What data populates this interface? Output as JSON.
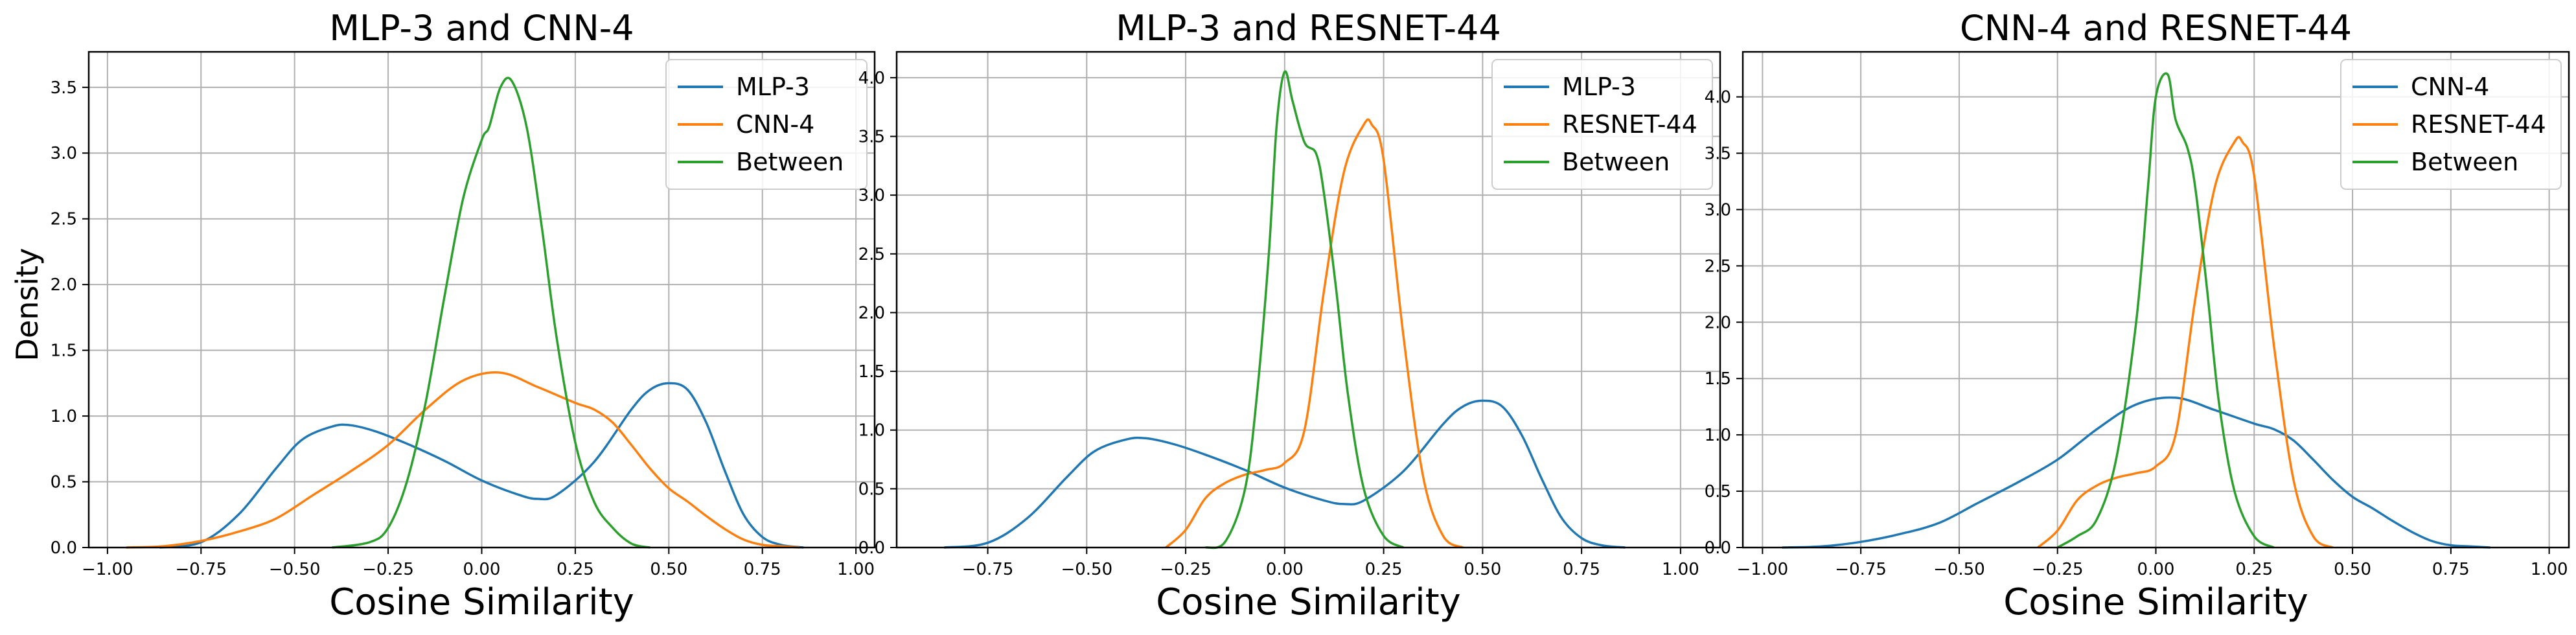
{
  "figure": {
    "ylabel": "Density"
  },
  "chart_data": [
    {
      "type": "line",
      "title": "MLP-3 and CNN-4",
      "xlabel": "Cosine Similarity",
      "ylabel": "Density",
      "xlim": [
        -1.05,
        1.05
      ],
      "ylim": [
        0,
        3.77
      ],
      "xticks": [
        -1.0,
        -0.75,
        -0.5,
        -0.25,
        0.0,
        0.25,
        0.5,
        0.75,
        1.0
      ],
      "xtick_labels": [
        "−1.00",
        "−0.75",
        "−0.50",
        "−0.25",
        "0.00",
        "0.25",
        "0.50",
        "0.75",
        "1.00"
      ],
      "yticks": [
        0,
        0.5,
        1.0,
        1.5,
        2.0,
        2.5,
        3.0,
        3.5
      ],
      "ytick_labels": [
        "0.0",
        "0.5",
        "1.0",
        "1.5",
        "2.0",
        "2.5",
        "3.0",
        "3.5"
      ],
      "grid": true,
      "legend_position": "top-right",
      "series": [
        {
          "name": "MLP-3",
          "color": "#1f77b4",
          "x": [
            -0.86,
            -0.75,
            -0.65,
            -0.55,
            -0.48,
            -0.4,
            -0.35,
            -0.28,
            -0.2,
            -0.1,
            0.0,
            0.1,
            0.15,
            0.2,
            0.3,
            0.4,
            0.45,
            0.5,
            0.55,
            0.6,
            0.65,
            0.7,
            0.75,
            0.8,
            0.86
          ],
          "y": [
            0.0,
            0.04,
            0.25,
            0.6,
            0.82,
            0.92,
            0.93,
            0.88,
            0.79,
            0.66,
            0.51,
            0.4,
            0.37,
            0.4,
            0.65,
            1.05,
            1.2,
            1.25,
            1.2,
            0.95,
            0.58,
            0.25,
            0.08,
            0.02,
            0.0
          ]
        },
        {
          "name": "CNN-4",
          "color": "#ff7f0e",
          "x": [
            -0.95,
            -0.85,
            -0.75,
            -0.65,
            -0.55,
            -0.45,
            -0.35,
            -0.25,
            -0.15,
            -0.05,
            0.05,
            0.15,
            0.25,
            0.3,
            0.35,
            0.4,
            0.45,
            0.5,
            0.55,
            0.6,
            0.65,
            0.7,
            0.75,
            0.8,
            0.85
          ],
          "y": [
            0.0,
            0.01,
            0.05,
            0.12,
            0.22,
            0.4,
            0.58,
            0.78,
            1.05,
            1.27,
            1.33,
            1.22,
            1.1,
            1.05,
            0.95,
            0.78,
            0.6,
            0.45,
            0.35,
            0.24,
            0.14,
            0.06,
            0.02,
            0.01,
            0.0
          ]
        },
        {
          "name": "Between",
          "color": "#2ca02c",
          "x": [
            -0.4,
            -0.3,
            -0.25,
            -0.2,
            -0.15,
            -0.1,
            -0.05,
            0.0,
            0.02,
            0.05,
            0.08,
            0.12,
            0.16,
            0.2,
            0.25,
            0.3,
            0.35,
            0.4,
            0.45
          ],
          "y": [
            0.0,
            0.04,
            0.15,
            0.5,
            1.1,
            1.9,
            2.65,
            3.1,
            3.2,
            3.5,
            3.55,
            3.2,
            2.45,
            1.6,
            0.8,
            0.35,
            0.15,
            0.03,
            0.0
          ]
        }
      ]
    },
    {
      "type": "line",
      "title": "MLP-3 and RESNET-44",
      "xlabel": "Cosine Similarity",
      "ylabel": "",
      "xlim": [
        -0.98,
        1.1
      ],
      "ylim": [
        0,
        4.22
      ],
      "xticks": [
        -0.75,
        -0.5,
        -0.25,
        0.0,
        0.25,
        0.5,
        0.75,
        1.0
      ],
      "xtick_labels": [
        "−0.75",
        "−0.50",
        "−0.25",
        "0.00",
        "0.25",
        "0.50",
        "0.75",
        "1.00"
      ],
      "yticks": [
        0,
        0.5,
        1.0,
        1.5,
        2.0,
        2.5,
        3.0,
        3.5,
        4.0
      ],
      "ytick_labels": [
        "0.0",
        "0.5",
        "1.0",
        "1.5",
        "2.0",
        "2.5",
        "3.0",
        "3.5",
        "4.0"
      ],
      "grid": true,
      "legend_position": "top-right",
      "series": [
        {
          "name": "MLP-3",
          "color": "#1f77b4",
          "x": [
            -0.86,
            -0.75,
            -0.65,
            -0.55,
            -0.48,
            -0.4,
            -0.35,
            -0.28,
            -0.2,
            -0.1,
            0.0,
            0.1,
            0.15,
            0.2,
            0.3,
            0.4,
            0.45,
            0.5,
            0.55,
            0.6,
            0.65,
            0.7,
            0.75,
            0.8,
            0.86
          ],
          "y": [
            0.0,
            0.04,
            0.25,
            0.6,
            0.82,
            0.92,
            0.93,
            0.88,
            0.79,
            0.66,
            0.51,
            0.4,
            0.37,
            0.4,
            0.65,
            1.05,
            1.2,
            1.25,
            1.2,
            0.95,
            0.58,
            0.25,
            0.08,
            0.02,
            0.0
          ]
        },
        {
          "name": "RESNET-44",
          "color": "#ff7f0e",
          "x": [
            -0.3,
            -0.25,
            -0.2,
            -0.15,
            -0.1,
            -0.05,
            0.0,
            0.05,
            0.1,
            0.15,
            0.2,
            0.22,
            0.25,
            0.3,
            0.35,
            0.4,
            0.45
          ],
          "y": [
            0.0,
            0.15,
            0.42,
            0.55,
            0.62,
            0.66,
            0.72,
            1.0,
            2.2,
            3.2,
            3.6,
            3.6,
            3.3,
            1.8,
            0.6,
            0.1,
            0.0
          ]
        },
        {
          "name": "Between",
          "color": "#2ca02c",
          "x": [
            -0.2,
            -0.15,
            -0.1,
            -0.07,
            -0.04,
            -0.02,
            0.0,
            0.02,
            0.05,
            0.08,
            0.1,
            0.13,
            0.16,
            0.2,
            0.25,
            0.3
          ],
          "y": [
            0.0,
            0.05,
            0.5,
            1.3,
            2.5,
            3.6,
            4.05,
            3.8,
            3.45,
            3.35,
            3.0,
            2.2,
            1.3,
            0.5,
            0.1,
            0.0
          ]
        }
      ]
    },
    {
      "type": "line",
      "title": "CNN-4 and RESNET-44",
      "xlabel": "Cosine Similarity",
      "ylabel": "",
      "xlim": [
        -1.05,
        1.05
      ],
      "ylim": [
        0,
        4.4
      ],
      "xticks": [
        -1.0,
        -0.75,
        -0.5,
        -0.25,
        0.0,
        0.25,
        0.5,
        0.75,
        1.0
      ],
      "xtick_labels": [
        "−1.00",
        "−0.75",
        "−0.50",
        "−0.25",
        "0.00",
        "0.25",
        "0.50",
        "0.75",
        "1.00"
      ],
      "yticks": [
        0,
        0.5,
        1.0,
        1.5,
        2.0,
        2.5,
        3.0,
        3.5,
        4.0
      ],
      "ytick_labels": [
        "0.0",
        "0.5",
        "1.0",
        "1.5",
        "2.0",
        "2.5",
        "3.0",
        "3.5",
        "4.0"
      ],
      "grid": true,
      "legend_position": "top-right",
      "series": [
        {
          "name": "CNN-4",
          "color": "#1f77b4",
          "x": [
            -0.95,
            -0.85,
            -0.75,
            -0.65,
            -0.55,
            -0.45,
            -0.35,
            -0.25,
            -0.15,
            -0.05,
            0.05,
            0.15,
            0.25,
            0.3,
            0.35,
            0.4,
            0.45,
            0.5,
            0.55,
            0.6,
            0.65,
            0.7,
            0.75,
            0.8,
            0.85
          ],
          "y": [
            0.0,
            0.01,
            0.05,
            0.12,
            0.22,
            0.4,
            0.58,
            0.78,
            1.05,
            1.27,
            1.33,
            1.22,
            1.1,
            1.05,
            0.95,
            0.78,
            0.6,
            0.45,
            0.35,
            0.24,
            0.14,
            0.06,
            0.02,
            0.01,
            0.0
          ]
        },
        {
          "name": "RESNET-44",
          "color": "#ff7f0e",
          "x": [
            -0.3,
            -0.25,
            -0.2,
            -0.15,
            -0.1,
            -0.05,
            0.0,
            0.05,
            0.1,
            0.15,
            0.2,
            0.22,
            0.25,
            0.3,
            0.35,
            0.4,
            0.45
          ],
          "y": [
            0.0,
            0.15,
            0.42,
            0.55,
            0.62,
            0.66,
            0.72,
            1.0,
            2.2,
            3.2,
            3.6,
            3.6,
            3.3,
            1.8,
            0.6,
            0.1,
            0.0
          ]
        },
        {
          "name": "Between",
          "color": "#2ca02c",
          "x": [
            -0.25,
            -0.2,
            -0.15,
            -0.1,
            -0.05,
            -0.02,
            0.0,
            0.03,
            0.05,
            0.08,
            0.1,
            0.13,
            0.16,
            0.2,
            0.25,
            0.3
          ],
          "y": [
            0.0,
            0.1,
            0.25,
            0.8,
            2.0,
            3.2,
            4.0,
            4.2,
            3.8,
            3.55,
            3.2,
            2.3,
            1.3,
            0.5,
            0.1,
            0.0
          ]
        }
      ]
    }
  ]
}
